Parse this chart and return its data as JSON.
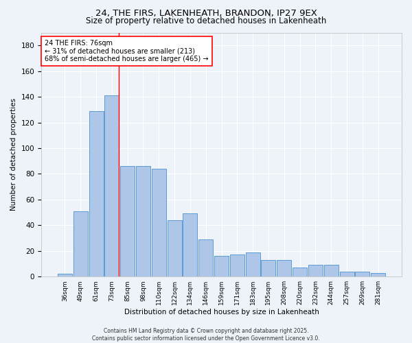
{
  "title": "24, THE FIRS, LAKENHEATH, BRANDON, IP27 9EX",
  "subtitle": "Size of property relative to detached houses in Lakenheath",
  "xlabel": "Distribution of detached houses by size in Lakenheath",
  "ylabel": "Number of detached properties",
  "categories": [
    "36sqm",
    "49sqm",
    "61sqm",
    "73sqm",
    "85sqm",
    "98sqm",
    "110sqm",
    "122sqm",
    "134sqm",
    "146sqm",
    "159sqm",
    "171sqm",
    "183sqm",
    "195sqm",
    "208sqm",
    "220sqm",
    "232sqm",
    "244sqm",
    "257sqm",
    "269sqm",
    "281sqm"
  ],
  "values": [
    2,
    51,
    129,
    141,
    86,
    86,
    84,
    44,
    49,
    29,
    16,
    17,
    19,
    13,
    13,
    7,
    9,
    9,
    4,
    4,
    3
  ],
  "bar_color": "#aec6e8",
  "bar_edge_color": "#5b9bd5",
  "background_color": "#eef2f9",
  "grid_color": "#ffffff",
  "vline_color": "red",
  "vline_index": 3,
  "annotation_text": "24 THE FIRS: 76sqm\n← 31% of detached houses are smaller (213)\n68% of semi-detached houses are larger (465) →",
  "annotation_box_color": "white",
  "annotation_box_edge": "red",
  "footnote": "Contains HM Land Registry data © Crown copyright and database right 2025.\nContains public sector information licensed under the Open Government Licence v3.0.",
  "ylim": [
    0,
    190
  ],
  "yticks": [
    0,
    20,
    40,
    60,
    80,
    100,
    120,
    140,
    160,
    180
  ]
}
